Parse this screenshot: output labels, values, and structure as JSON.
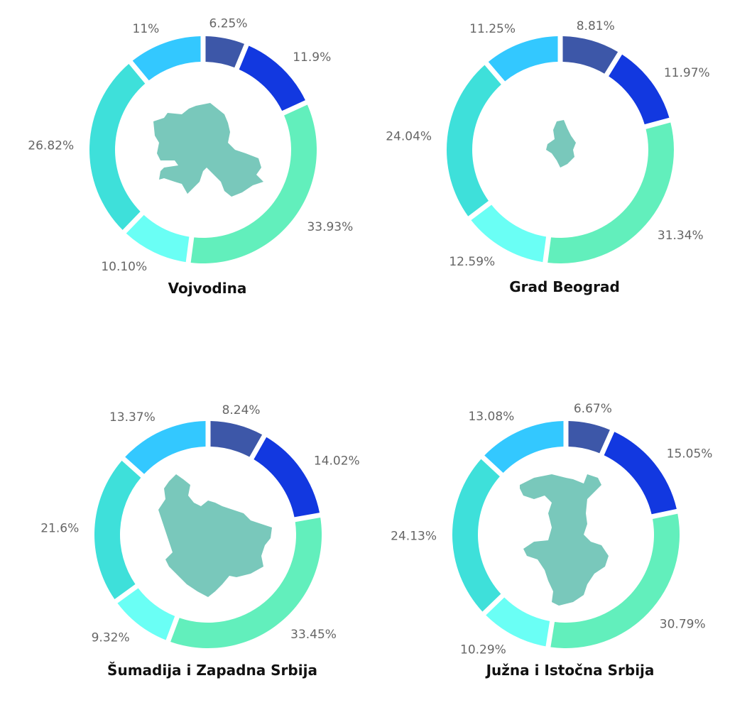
{
  "chart_data": [
    {
      "type": "pie",
      "title": "Vojvodina",
      "values": [
        6.25,
        11.9,
        33.93,
        10.1,
        26.82,
        11
      ],
      "labels": [
        "6.25%",
        "11.9%",
        "33.93%",
        "10.10%",
        "26.82%",
        "11%"
      ]
    },
    {
      "type": "pie",
      "title": "Grad Beograd",
      "values": [
        8.81,
        11.97,
        31.34,
        12.59,
        24.04,
        11.25
      ],
      "labels": [
        "8.81%",
        "11.97%",
        "31.34%",
        "12.59%",
        "24.04%",
        "11.25%"
      ]
    },
    {
      "type": "pie",
      "title": "Šumadija i Zapadna Srbija",
      "values": [
        8.24,
        14.02,
        33.45,
        9.32,
        21.6,
        13.37
      ],
      "labels": [
        "8.24%",
        "14.02%",
        "33.45%",
        "9.32%",
        "21.6%",
        "13.37%"
      ]
    },
    {
      "type": "pie",
      "title": "Južna i Istočna Srbija",
      "values": [
        6.67,
        15.05,
        30.79,
        10.29,
        24.13,
        13.08
      ],
      "labels": [
        "6.67%",
        "15.05%",
        "30.79%",
        "10.29%",
        "24.13%",
        "13.08%"
      ]
    }
  ],
  "colors": [
    "#3d57a8",
    "#1238e0",
    "#62efbc",
    "#6afff5",
    "#3ee0da",
    "#33c8ff"
  ],
  "map_color": "#79c8bb"
}
